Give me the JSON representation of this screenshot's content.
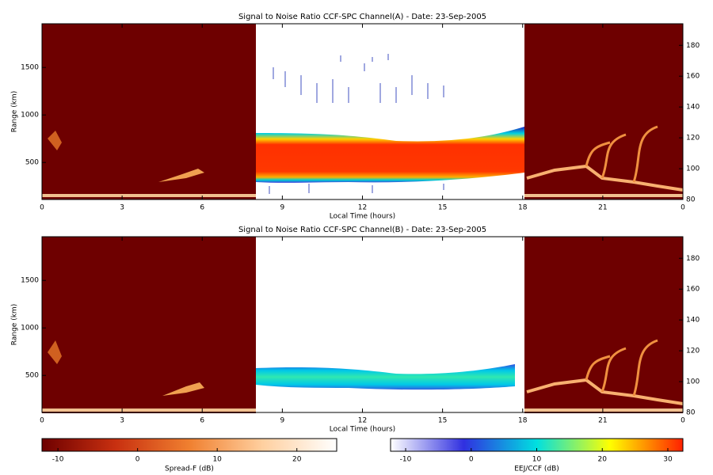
{
  "chart_data": [
    {
      "type": "heatmap",
      "title": "Signal to Noise Ratio CCF-SPC Channel(A) - Date: 23-Sep-2005",
      "x_label": "Local Time (hours)",
      "y_label": "Range (km)",
      "xlim": [
        0,
        24
      ],
      "xticks": [
        0,
        3,
        6,
        9,
        12,
        15,
        18,
        21,
        {
          "value": 24,
          "label": "0"
        }
      ],
      "ylim": [
        110,
        1960
      ],
      "yticks": [
        500,
        1000,
        1500
      ],
      "y2lim": [
        80,
        194
      ],
      "y2ticks": [
        80,
        100,
        120,
        140,
        160,
        180
      ]
    },
    {
      "type": "heatmap",
      "title": "Signal to Noise Ratio CCF-SPC Channel(B) - Date: 23-Sep-2005",
      "x_label": "Local Time (hours)",
      "y_label": "Range (km)",
      "xlim": [
        0,
        24
      ],
      "xticks": [
        0,
        3,
        6,
        9,
        12,
        15,
        18,
        21,
        {
          "value": 24,
          "label": "0"
        }
      ],
      "ylim": [
        110,
        1960
      ],
      "yticks": [
        500,
        1000,
        1500
      ],
      "y2lim": [
        80,
        194
      ],
      "y2ticks": [
        80,
        100,
        120,
        140,
        160,
        180
      ]
    }
  ],
  "colorbars": [
    {
      "label": "Spread-F (dB)",
      "lim": [
        -12,
        25
      ],
      "ticks": [
        -10,
        0,
        10,
        20
      ],
      "colors": [
        "#6e0000",
        "#c83010",
        "#f08030",
        "#ffd0a0",
        "#ffffff"
      ]
    },
    {
      "label": "EEJ/CCF (dB)",
      "lim": [
        -12.3,
        32.3
      ],
      "ticks": [
        -10,
        0,
        10,
        20,
        30
      ],
      "colors": [
        "#ffffff",
        "#3030e0",
        "#00e0e0",
        "#ffff00",
        "#ff2000"
      ]
    }
  ]
}
